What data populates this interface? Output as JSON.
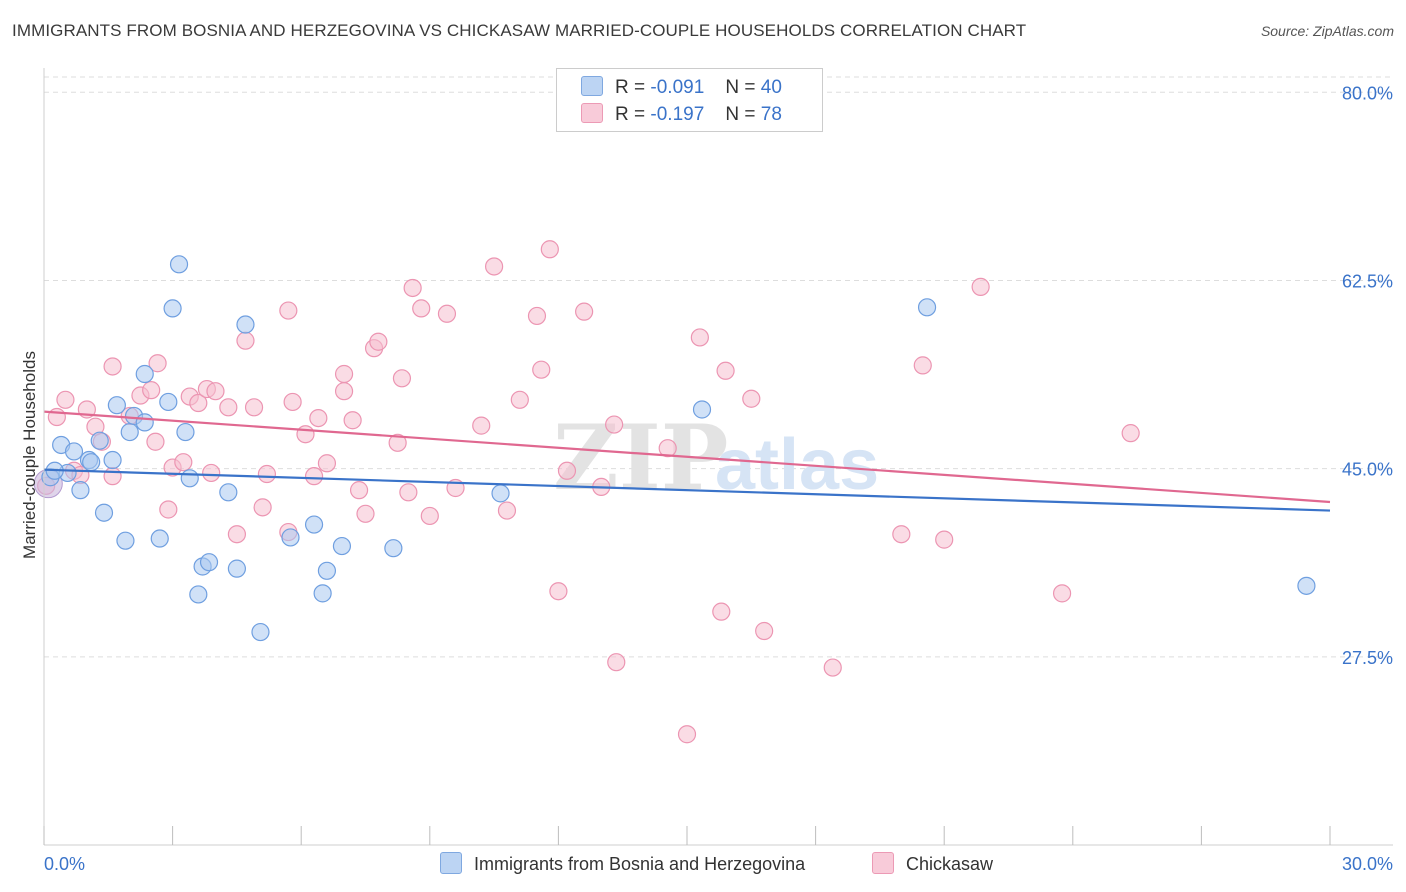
{
  "title": "IMMIGRANTS FROM BOSNIA AND HERZEGOVINA VS CHICKASAW MARRIED-COUPLE HOUSEHOLDS CORRELATION CHART",
  "source": "Source: ZipAtlas.com",
  "watermark": {
    "zip": "ZIP",
    "atlas": "atlas"
  },
  "legend": {
    "series1": {
      "r_label": "R =",
      "r_value": "-0.091",
      "n_label": "N =",
      "n_value": "40"
    },
    "series2": {
      "r_label": "R =",
      "r_value": "-0.197",
      "n_label": "N =",
      "n_value": "78"
    }
  },
  "colors": {
    "blue_fill": "#aac8f0",
    "blue_stroke": "#6f9fe0",
    "blue_line": "#3a73c9",
    "pink_fill": "#f6bfd0",
    "pink_stroke": "#ec95b2",
    "pink_line": "#e06890",
    "grid": "#dddddd",
    "tick_label": "#3a73c9"
  },
  "chart_data": {
    "type": "scatter",
    "title": "IMMIGRANTS FROM BOSNIA AND HERZEGOVINA VS CHICKASAW MARRIED-COUPLE HOUSEHOLDS CORRELATION CHART",
    "xlabel": "",
    "ylabel": "Married-couple Households",
    "xlim": [
      0,
      30
    ],
    "ylim": [
      10,
      83
    ],
    "x_tick_labels": [
      "0.0%",
      "30.0%"
    ],
    "y_ticks": [
      27.5,
      45.0,
      62.5,
      80.0
    ],
    "y_tick_labels": [
      "27.5%",
      "45.0%",
      "62.5%",
      "80.0%"
    ],
    "grid": true,
    "series": [
      {
        "name": "Immigrants from Bosnia and Herzegovina",
        "color": "#aac8f0",
        "trend": {
          "x": [
            0,
            30
          ],
          "y": [
            44.9,
            41.1
          ]
        },
        "points": [
          [
            0.15,
            44.2
          ],
          [
            0.4,
            47.2
          ],
          [
            0.55,
            44.6
          ],
          [
            0.7,
            46.6
          ],
          [
            0.85,
            43.0
          ],
          [
            1.05,
            45.8
          ],
          [
            1.3,
            47.6
          ],
          [
            1.4,
            40.9
          ],
          [
            1.6,
            45.8
          ],
          [
            1.7,
            50.9
          ],
          [
            1.9,
            38.3
          ],
          [
            2.0,
            48.4
          ],
          [
            2.1,
            49.9
          ],
          [
            2.35,
            49.3
          ],
          [
            2.35,
            53.8
          ],
          [
            2.7,
            38.5
          ],
          [
            2.9,
            51.2
          ],
          [
            3.0,
            59.9
          ],
          [
            3.15,
            64.0
          ],
          [
            3.3,
            48.4
          ],
          [
            3.4,
            44.1
          ],
          [
            3.6,
            33.3
          ],
          [
            3.7,
            35.9
          ],
          [
            3.85,
            36.3
          ],
          [
            4.3,
            42.8
          ],
          [
            4.5,
            35.7
          ],
          [
            4.7,
            58.4
          ],
          [
            5.05,
            29.8
          ],
          [
            5.75,
            38.6
          ],
          [
            6.3,
            39.8
          ],
          [
            6.5,
            33.4
          ],
          [
            6.6,
            35.5
          ],
          [
            6.95,
            37.8
          ],
          [
            8.15,
            37.6
          ],
          [
            10.65,
            42.7
          ],
          [
            15.35,
            50.5
          ],
          [
            20.6,
            60.0
          ],
          [
            29.45,
            34.1
          ],
          [
            0.25,
            44.8
          ],
          [
            1.1,
            45.6
          ]
        ]
      },
      {
        "name": "Chickasaw",
        "color": "#f6bfd0",
        "trend": {
          "x": [
            0,
            30
          ],
          "y": [
            50.3,
            41.9
          ]
        },
        "points": [
          [
            0.05,
            43.4
          ],
          [
            0.3,
            49.8
          ],
          [
            0.5,
            51.4
          ],
          [
            0.7,
            44.8
          ],
          [
            0.85,
            44.4
          ],
          [
            1.0,
            50.5
          ],
          [
            1.2,
            48.9
          ],
          [
            1.35,
            47.5
          ],
          [
            1.6,
            44.3
          ],
          [
            1.6,
            54.5
          ],
          [
            2.0,
            49.9
          ],
          [
            2.25,
            51.8
          ],
          [
            2.5,
            52.3
          ],
          [
            2.6,
            47.5
          ],
          [
            2.65,
            54.8
          ],
          [
            2.9,
            41.2
          ],
          [
            3.0,
            45.1
          ],
          [
            3.25,
            45.6
          ],
          [
            3.4,
            51.7
          ],
          [
            3.6,
            51.1
          ],
          [
            3.8,
            52.4
          ],
          [
            3.9,
            44.6
          ],
          [
            4.0,
            52.2
          ],
          [
            4.3,
            50.7
          ],
          [
            4.5,
            38.9
          ],
          [
            4.7,
            56.9
          ],
          [
            4.9,
            50.7
          ],
          [
            5.1,
            41.4
          ],
          [
            5.2,
            44.5
          ],
          [
            5.7,
            39.1
          ],
          [
            5.7,
            59.7
          ],
          [
            5.8,
            51.2
          ],
          [
            6.1,
            48.2
          ],
          [
            6.3,
            44.3
          ],
          [
            6.4,
            49.7
          ],
          [
            6.6,
            45.5
          ],
          [
            7.0,
            52.2
          ],
          [
            7.0,
            53.8
          ],
          [
            7.2,
            49.5
          ],
          [
            7.35,
            43.0
          ],
          [
            7.5,
            40.8
          ],
          [
            7.7,
            56.2
          ],
          [
            7.8,
            56.8
          ],
          [
            8.25,
            47.4
          ],
          [
            8.35,
            53.4
          ],
          [
            8.5,
            42.8
          ],
          [
            8.6,
            61.8
          ],
          [
            8.8,
            59.9
          ],
          [
            9.0,
            40.6
          ],
          [
            9.4,
            59.4
          ],
          [
            9.6,
            43.2
          ],
          [
            10.2,
            49.0
          ],
          [
            10.5,
            63.8
          ],
          [
            10.8,
            41.1
          ],
          [
            11.1,
            51.4
          ],
          [
            11.5,
            59.2
          ],
          [
            11.6,
            54.2
          ],
          [
            11.8,
            65.4
          ],
          [
            12.0,
            33.6
          ],
          [
            12.2,
            44.8
          ],
          [
            12.6,
            59.6
          ],
          [
            13.0,
            43.3
          ],
          [
            13.3,
            49.1
          ],
          [
            13.35,
            27.0
          ],
          [
            14.55,
            46.9
          ],
          [
            15.0,
            20.3
          ],
          [
            15.3,
            57.2
          ],
          [
            15.8,
            31.7
          ],
          [
            15.9,
            54.1
          ],
          [
            16.5,
            51.5
          ],
          [
            16.8,
            29.9
          ],
          [
            18.4,
            26.5
          ],
          [
            20.0,
            38.9
          ],
          [
            20.5,
            54.6
          ],
          [
            21.0,
            38.4
          ],
          [
            21.85,
            61.9
          ],
          [
            23.75,
            33.4
          ],
          [
            25.35,
            48.3
          ]
        ]
      }
    ]
  },
  "bottom_legend": {
    "series1": "Immigrants from Bosnia and Herzegovina",
    "series2": "Chickasaw"
  }
}
